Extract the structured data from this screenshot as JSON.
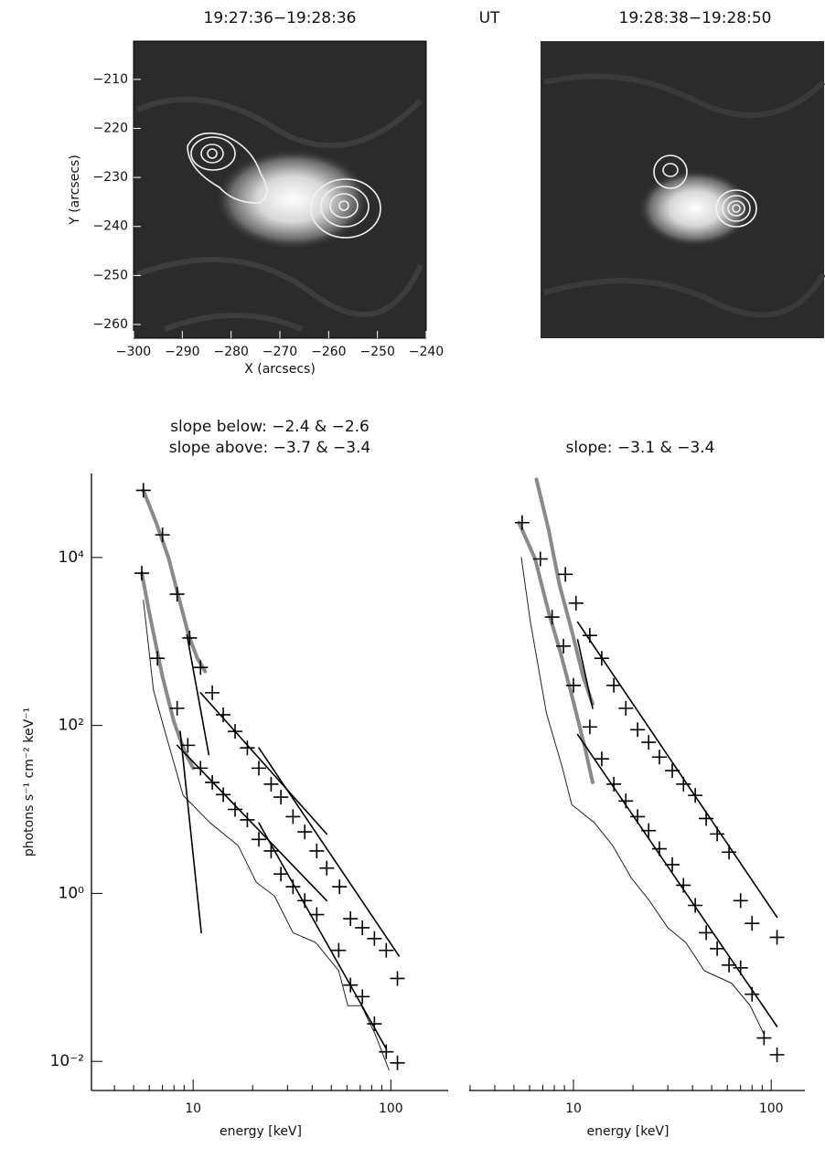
{
  "label": "UT",
  "chart_data": [
    {
      "type": "image",
      "title": "19:27:36−19:28:36",
      "xlabel": "X (arcsecs)",
      "ylabel": "Y (arcsecs)",
      "xlim": [
        -300,
        -240
      ],
      "ylim": [
        -262.8,
        -202.2
      ],
      "xticks": [
        {
          "value": -300,
          "label": "−300"
        },
        {
          "value": -290,
          "label": "−290"
        },
        {
          "value": -280,
          "label": "−280"
        },
        {
          "value": -270,
          "label": "−270"
        },
        {
          "value": -260,
          "label": "−260"
        },
        {
          "value": -250,
          "label": "−250"
        },
        {
          "value": -240,
          "label": "−240"
        }
      ],
      "yticks": [
        {
          "value": -260,
          "label": "−260"
        },
        {
          "value": -250,
          "label": "−250"
        },
        {
          "value": -240,
          "label": "−240"
        },
        {
          "value": -230,
          "label": "−230"
        },
        {
          "value": -220,
          "label": "−220"
        },
        {
          "value": -210,
          "label": "−210"
        }
      ]
    },
    {
      "type": "image",
      "title": "19:28:38−19:28:50"
    },
    {
      "type": "line",
      "log_x": true,
      "log_y": true,
      "y_axis": true,
      "title": [
        "slope below: −2.4 & −2.6",
        "slope above: −3.7 & −3.4"
      ],
      "xlabel": "energy [keV]",
      "ylabel": "photons s⁻¹ cm⁻² keV⁻¹",
      "xlim": [
        3.06,
        195
      ],
      "ylim": [
        0.0045,
        100000
      ],
      "xticks": [
        10,
        100
      ],
      "yticks": [
        {
          "value": 0.01,
          "label": "10⁻²"
        },
        {
          "value": 1,
          "label": "10⁰"
        },
        {
          "value": 100,
          "label": "10²"
        },
        {
          "value": 10000,
          "label": "10⁴"
        }
      ],
      "series": [
        {
          "style": "thin-line",
          "color": "#222222",
          "x": [
            5.6,
            6.3,
            7.2,
            8.9,
            12.2,
            16.9,
            20.9,
            25.8,
            32,
            41.7,
            54.5,
            60.6,
            71,
            83.4,
            97.8
          ],
          "values": [
            3100,
            263,
            85,
            14.7,
            6.9,
            3.7,
            1.35,
            0.93,
            0.34,
            0.26,
            0.12,
            0.046,
            0.046,
            0.021,
            0.0079
          ]
        },
        {
          "style": "thick-line",
          "color": "#8a8a8a",
          "x": [
            5.6,
            6.5,
            7.5,
            8.5,
            9.5,
            10.5,
            11.5
          ],
          "values": [
            63000,
            26000,
            10000,
            3200,
            1180,
            630,
            440
          ]
        },
        {
          "style": "thick-line",
          "color": "#8a8a8a",
          "x": [
            5.5,
            6.0,
            7.0,
            8.0,
            9.0,
            10.0
          ],
          "values": [
            6500,
            2200,
            380,
            110,
            51,
            31
          ]
        },
        {
          "style": "line",
          "color": "#000000",
          "x": [
            9.3,
            12.0
          ],
          "values": [
            1200,
            45
          ]
        },
        {
          "style": "line",
          "color": "#000000",
          "x": [
            8.6,
            11.0
          ],
          "values": [
            85,
            0.34
          ]
        },
        {
          "style": "line",
          "color": "#000000",
          "x": [
            10.9,
            47.4
          ],
          "values": [
            245,
            5.1
          ]
        },
        {
          "style": "line",
          "color": "#000000",
          "x": [
            21.5,
            110
          ],
          "values": [
            54,
            0.18
          ]
        },
        {
          "style": "line",
          "color": "#000000",
          "x": [
            8.3,
            47.4
          ],
          "values": [
            58,
            0.82
          ]
        },
        {
          "style": "line",
          "color": "#000000",
          "x": [
            21.5,
            95
          ],
          "values": [
            6.9,
            0.014
          ]
        },
        {
          "style": "points",
          "color": "#000000",
          "x": [
            5.6,
            7.0,
            8.3,
            9.6,
            10.9,
            12.5,
            14.2,
            16.3,
            18.8,
            21.5,
            24.8,
            27.8,
            32.0,
            36.7,
            42.2,
            47.4,
            55.0,
            62.5,
            71.8,
            82.6,
            94.8,
            108
          ],
          "values": [
            63000,
            18600,
            3650,
            1100,
            490,
            245,
            134,
            85,
            54,
            31,
            20,
            14,
            8.2,
            5.4,
            3.2,
            2.0,
            1.2,
            0.5,
            0.39,
            0.29,
            0.21,
            0.097
          ]
        },
        {
          "style": "points",
          "color": "#000000",
          "x": [
            5.5,
            6.6,
            8.3,
            9.4,
            10.9,
            12.5,
            14.2,
            16.3,
            18.8,
            21.5,
            24.8,
            27.8,
            32.0,
            36.7,
            42.2,
            54.5,
            62.5,
            71.8,
            82.6,
            94.8,
            108
          ],
          "values": [
            6500,
            630,
            160,
            58,
            31,
            21,
            15,
            10,
            7.5,
            4.4,
            3.2,
            1.7,
            1.2,
            0.82,
            0.56,
            0.21,
            0.081,
            0.059,
            0.028,
            0.013,
            0.0096
          ]
        }
      ]
    },
    {
      "type": "line",
      "log_x": true,
      "log_y": true,
      "y_axis": false,
      "title": [
        "slope: −3.1 & −3.4"
      ],
      "xlabel": "energy [keV]",
      "xlim": [
        2.97,
        148
      ],
      "ylim": [
        0.0045,
        100000
      ],
      "xticks": [
        10,
        100
      ],
      "series": [
        {
          "style": "thin-line",
          "color": "#222222",
          "x": [
            5.45,
            6.05,
            7.3,
            8.8,
            9.8,
            12.8,
            15.8,
            19.6,
            24.2,
            30,
            37,
            45.9,
            63.2,
            78.3,
            92
          ],
          "values": [
            10000,
            1730,
            140,
            31,
            11.4,
            6.9,
            3.7,
            1.53,
            0.82,
            0.39,
            0.26,
            0.12,
            0.085,
            0.046,
            0.021
          ]
        },
        {
          "style": "thick-line",
          "color": "#8a8a8a",
          "x": [
            5.3,
            6.4,
            7.5,
            8.5,
            9.8,
            11.5,
            12.5
          ],
          "values": [
            26000,
            9600,
            2200,
            810,
            230,
            51,
            21
          ]
        },
        {
          "style": "thick-line",
          "color": "#8a8a8a",
          "x": [
            6.5,
            7.5,
            8.5,
            9.8,
            11.2,
            12.5
          ],
          "values": [
            85000,
            21000,
            4700,
            1350,
            380,
            180
          ]
        },
        {
          "style": "line",
          "color": "#000000",
          "x": [
            10.5,
            12.5
          ],
          "values": [
            1050,
            160
          ]
        },
        {
          "style": "line",
          "color": "#000000",
          "x": [
            10.5,
            107
          ],
          "values": [
            1700,
            0.52
          ]
        },
        {
          "style": "line",
          "color": "#000000",
          "x": [
            10.5,
            107
          ],
          "values": [
            78,
            0.026
          ]
        },
        {
          "style": "points",
          "color": "#000000",
          "x": [
            5.5,
            6.8,
            7.8,
            8.9,
            10,
            12.1,
            13.9,
            16.0,
            18.4,
            21.1,
            24.0,
            27.2,
            31.6,
            36.0,
            41.3,
            46.9,
            53.3,
            61.2,
            70,
            80,
            92,
            107
          ],
          "values": [
            26000,
            9600,
            1950,
            880,
            300,
            96,
            40,
            20,
            12.6,
            8.2,
            5.6,
            3.4,
            2.2,
            1.25,
            0.72,
            0.34,
            0.22,
            0.14,
            0.13,
            0.063,
            0.019,
            0.012
          ]
        },
        {
          "style": "points",
          "color": "#000000",
          "x": [
            9.1,
            10.3,
            12.1,
            13.9,
            16.0,
            18.4,
            21.1,
            24.0,
            27.2,
            31.6,
            36.0,
            41.3,
            46.9,
            53.3,
            61.2,
            70,
            80,
            107
          ],
          "values": [
            6300,
            2860,
            1180,
            630,
            300,
            160,
            89,
            63,
            42,
            29,
            20,
            14.7,
            7.8,
            5.1,
            3.1,
            0.82,
            0.44,
            0.3
          ]
        }
      ]
    }
  ]
}
